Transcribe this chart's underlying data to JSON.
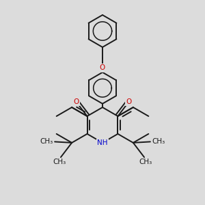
{
  "bg": "#dcdcdc",
  "lc": "#1a1a1a",
  "oc": "#cc0000",
  "nc": "#0000cc",
  "lw": 1.4,
  "fs": 7.5,
  "dpi": 100,
  "xlim": [
    0,
    10
  ],
  "ylim": [
    0,
    10
  ]
}
